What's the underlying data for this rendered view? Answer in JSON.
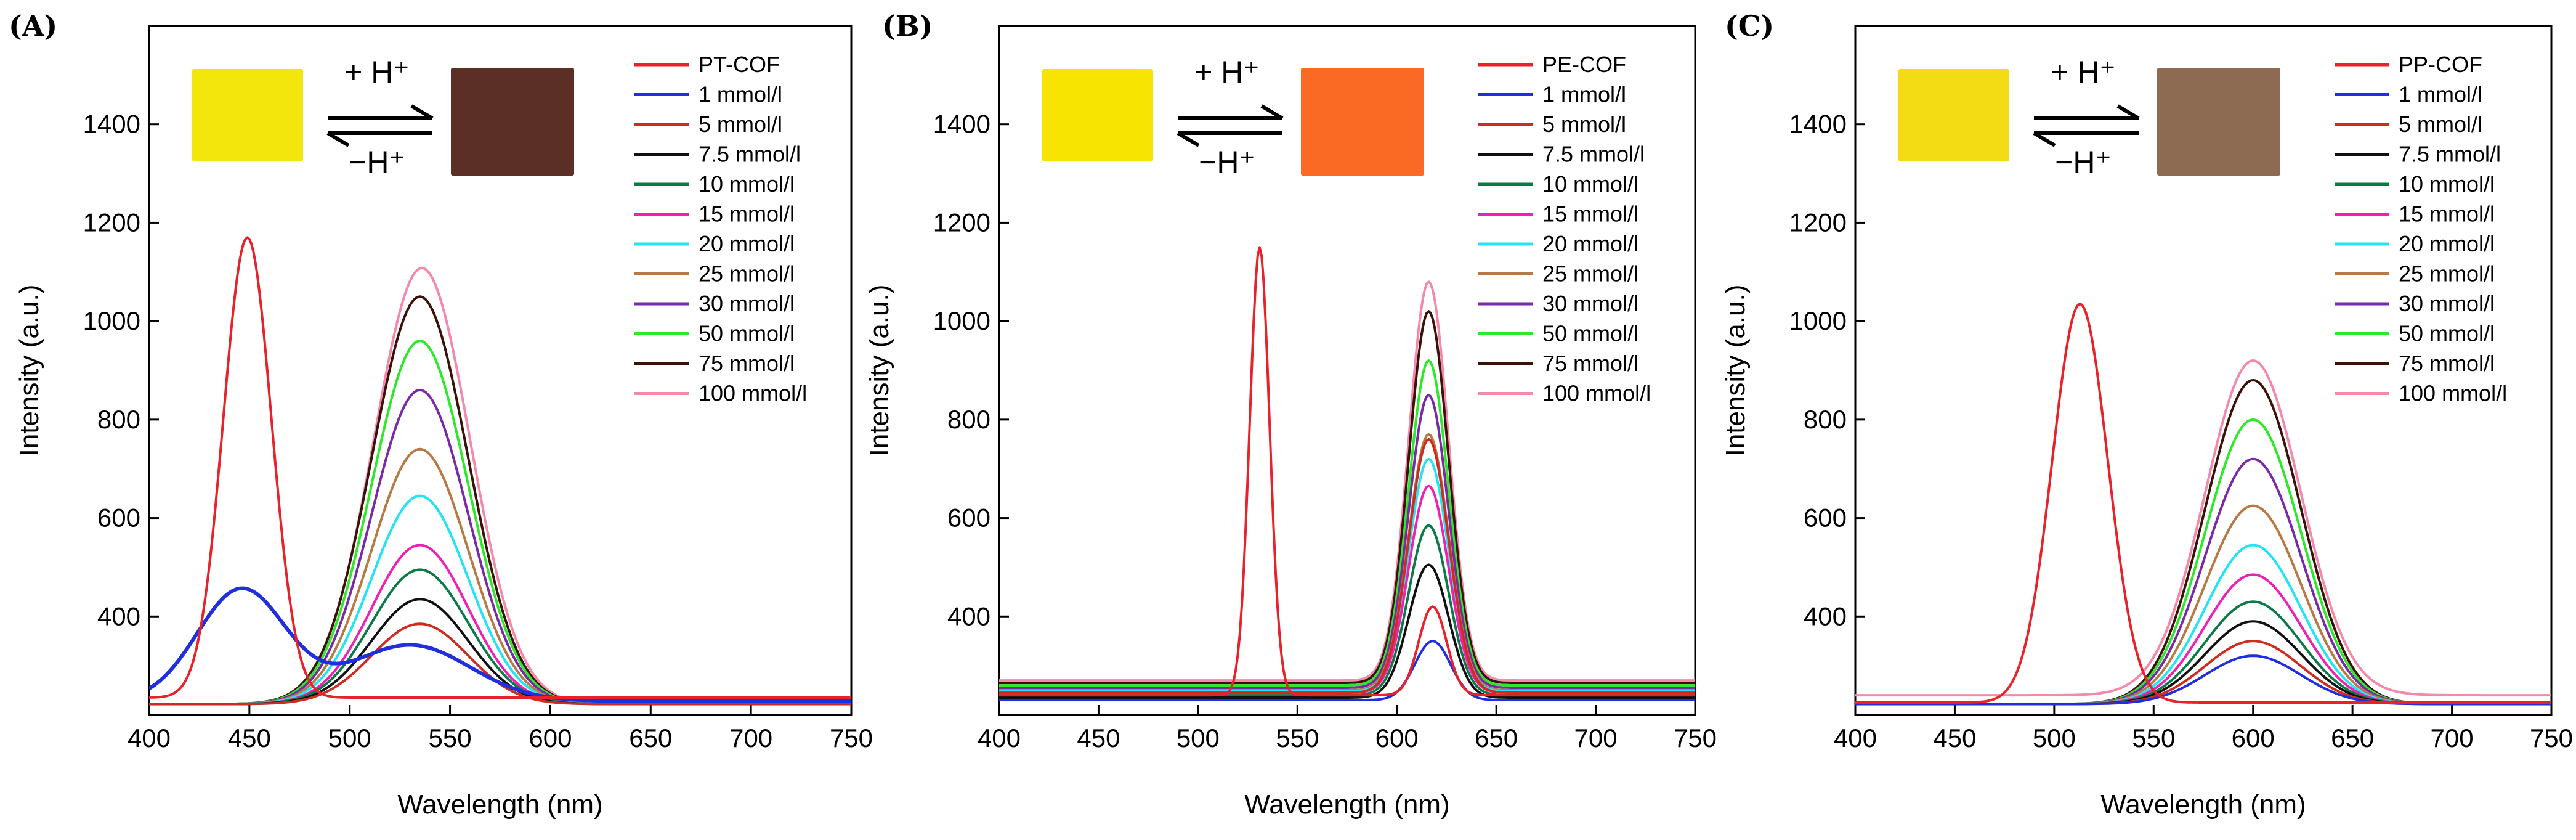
{
  "chart_data": [
    {
      "type": "line",
      "panel_label": "(A)",
      "xlabel": "Wavelength (nm)",
      "ylabel": "Intensity (a.u.)",
      "xlim": [
        400,
        750
      ],
      "ylim": [
        200,
        1600
      ],
      "xticks": [
        "400",
        "450",
        "500",
        "550",
        "600",
        "650",
        "700",
        "750"
      ],
      "yticks": [
        "400",
        "600",
        "800",
        "1000",
        "1200",
        "1400"
      ],
      "inset": {
        "forward": "+ H⁺",
        "reverse": "−H⁺",
        "color_before": "#f2e60c",
        "color_after": "#5b2f26"
      },
      "legend_position": "top-right",
      "series": [
        {
          "name": "PT-COF",
          "color": "#e8222a",
          "peak": 1170,
          "center": 449,
          "width": 12,
          "base": 235
        },
        {
          "name": "1 mmol/l",
          "color": "#1f2fe0",
          "peak": 342,
          "center": 530,
          "width": 30,
          "base": 228,
          "secondary": {
            "peak": 455,
            "center": 446,
            "width": 22
          }
        },
        {
          "name": "5 mmol/l",
          "color": "#d02b20",
          "peak": 385,
          "center": 535,
          "width": 24,
          "base": 222
        },
        {
          "name": "7.5 mmol/l",
          "color": "#111111",
          "peak": 435,
          "center": 535,
          "width": 24,
          "base": 222
        },
        {
          "name": "10 mmol/l",
          "color": "#0a7a46",
          "peak": 495,
          "center": 535,
          "width": 24,
          "base": 222
        },
        {
          "name": "15 mmol/l",
          "color": "#f020b4",
          "peak": 545,
          "center": 535,
          "width": 24,
          "base": 222
        },
        {
          "name": "20 mmol/l",
          "color": "#22e4f4",
          "peak": 645,
          "center": 535,
          "width": 24,
          "base": 222
        },
        {
          "name": "25 mmol/l",
          "color": "#b87a45",
          "peak": 740,
          "center": 535,
          "width": 24,
          "base": 222
        },
        {
          "name": "30 mmol/l",
          "color": "#7a2aa6",
          "peak": 860,
          "center": 535,
          "width": 24,
          "base": 222
        },
        {
          "name": "50 mmol/l",
          "color": "#2ee82a",
          "peak": 960,
          "center": 535,
          "width": 24,
          "base": 222
        },
        {
          "name": "75 mmol/l",
          "color": "#3a1208",
          "peak": 1050,
          "center": 535,
          "width": 24,
          "base": 222
        },
        {
          "name": "100 mmol/l",
          "color": "#f48aaa",
          "peak": 1108,
          "center": 536,
          "width": 24,
          "base": 222
        }
      ]
    },
    {
      "type": "line",
      "panel_label": "(B)",
      "xlabel": "Wavelength (nm)",
      "ylabel": "Intensity (a.u.)",
      "xlim": [
        400,
        750
      ],
      "ylim": [
        200,
        1600
      ],
      "xticks": [
        "400",
        "450",
        "500",
        "550",
        "600",
        "650",
        "700",
        "750"
      ],
      "yticks": [
        "400",
        "600",
        "800",
        "1000",
        "1200",
        "1400"
      ],
      "inset": {
        "forward": "+ H⁺",
        "reverse": "−H⁺",
        "color_before": "#f7e400",
        "color_after": "#fb6a24"
      },
      "legend_position": "top-right",
      "series": [
        {
          "name": "PE-COF",
          "color": "#e8222a",
          "peak": 1150,
          "center": 531,
          "width": 5,
          "base": 240,
          "secondary": {
            "peak": 420,
            "center": 618,
            "width": 7
          }
        },
        {
          "name": "1 mmol/l",
          "color": "#1f2fe0",
          "peak": 350,
          "center": 618,
          "width": 9,
          "base": 230
        },
        {
          "name": "5 mmol/l",
          "color": "#d02b20",
          "peak": 760,
          "center": 616,
          "width": 10,
          "base": 245
        },
        {
          "name": "7.5 mmol/l",
          "color": "#111111",
          "peak": 505,
          "center": 616,
          "width": 10,
          "base": 235
        },
        {
          "name": "10 mmol/l",
          "color": "#0a7a46",
          "peak": 585,
          "center": 616,
          "width": 10,
          "base": 240
        },
        {
          "name": "15 mmol/l",
          "color": "#f020b4",
          "peak": 665,
          "center": 616,
          "width": 10,
          "base": 245
        },
        {
          "name": "20 mmol/l",
          "color": "#22e4f4",
          "peak": 720,
          "center": 616,
          "width": 10,
          "base": 248
        },
        {
          "name": "25 mmol/l",
          "color": "#b87a45",
          "peak": 770,
          "center": 616,
          "width": 10,
          "base": 250
        },
        {
          "name": "30 mmol/l",
          "color": "#7a2aa6",
          "peak": 850,
          "center": 616,
          "width": 10,
          "base": 255
        },
        {
          "name": "50 mmol/l",
          "color": "#2ee82a",
          "peak": 920,
          "center": 616,
          "width": 10,
          "base": 260
        },
        {
          "name": "75 mmol/l",
          "color": "#3a1208",
          "peak": 1020,
          "center": 616,
          "width": 10,
          "base": 265
        },
        {
          "name": "100 mmol/l",
          "color": "#f48aaa",
          "peak": 1080,
          "center": 616,
          "width": 10,
          "base": 270
        }
      ]
    },
    {
      "type": "line",
      "panel_label": "(C)",
      "xlabel": "Wavelength (nm)",
      "ylabel": "Intensity (a.u.)",
      "xlim": [
        400,
        750
      ],
      "ylim": [
        200,
        1600
      ],
      "xticks": [
        "400",
        "450",
        "500",
        "550",
        "600",
        "650",
        "700",
        "750"
      ],
      "yticks": [
        "400",
        "600",
        "800",
        "1000",
        "1200",
        "1400"
      ],
      "inset": {
        "forward": "+ H⁺",
        "reverse": "−H⁺",
        "color_before": "#f4dc14",
        "color_after": "#8d6a52"
      },
      "legend_position": "top-right",
      "series": [
        {
          "name": "PP-COF",
          "color": "#e8222a",
          "peak": 1035,
          "center": 513,
          "width": 14,
          "base": 225
        },
        {
          "name": "1 mmol/l",
          "color": "#1f2fe0",
          "peak": 320,
          "center": 600,
          "width": 24,
          "base": 222
        },
        {
          "name": "5 mmol/l",
          "color": "#d02b20",
          "peak": 350,
          "center": 600,
          "width": 24,
          "base": 222
        },
        {
          "name": "7.5 mmol/l",
          "color": "#111111",
          "peak": 390,
          "center": 600,
          "width": 24,
          "base": 222
        },
        {
          "name": "10 mmol/l",
          "color": "#0a7a46",
          "peak": 430,
          "center": 600,
          "width": 24,
          "base": 222
        },
        {
          "name": "15 mmol/l",
          "color": "#f020b4",
          "peak": 485,
          "center": 600,
          "width": 24,
          "base": 222
        },
        {
          "name": "20 mmol/l",
          "color": "#22e4f4",
          "peak": 545,
          "center": 600,
          "width": 24,
          "base": 222
        },
        {
          "name": "25 mmol/l",
          "color": "#b87a45",
          "peak": 625,
          "center": 600,
          "width": 24,
          "base": 222
        },
        {
          "name": "30 mmol/l",
          "color": "#7a2aa6",
          "peak": 720,
          "center": 600,
          "width": 24,
          "base": 222
        },
        {
          "name": "50 mmol/l",
          "color": "#2ee82a",
          "peak": 800,
          "center": 600,
          "width": 24,
          "base": 222
        },
        {
          "name": "75 mmol/l",
          "color": "#3a1208",
          "peak": 880,
          "center": 600,
          "width": 24,
          "base": 222
        },
        {
          "name": "100 mmol/l",
          "color": "#f48aaa",
          "peak": 920,
          "center": 600,
          "width": 24,
          "base": 240
        }
      ]
    }
  ]
}
